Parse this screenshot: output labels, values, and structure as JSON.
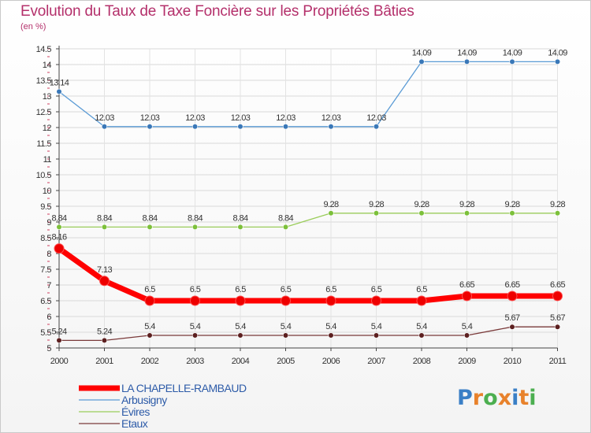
{
  "title": "Evolution du Taux de Taxe Foncière sur les Propriétés Bâties",
  "unit_label": "(en %)",
  "logo": {
    "text": "Proxiti",
    "letters": [
      "P",
      "r",
      "o",
      "x",
      "i",
      "t",
      "i"
    ],
    "colors": [
      "#3a7fc6",
      "#e8822c",
      "#4caf50",
      "#e8822c",
      "#3a7fc6",
      "#e8822c",
      "#4caf50"
    ]
  },
  "chart_data": {
    "type": "line",
    "title": "Evolution du Taux de Taxe Foncière sur les Propriétés Bâties",
    "ylabel": "(en %)",
    "xlabel": "",
    "categories": [
      "2000",
      "2001",
      "2002",
      "2003",
      "2004",
      "2005",
      "2006",
      "2007",
      "2008",
      "2009",
      "2010",
      "2011"
    ],
    "ylim": [
      5,
      14.5
    ],
    "yticks": [
      "5",
      "5.5",
      "6",
      "6.5",
      "7",
      "7.5",
      "8",
      "8.5",
      "9",
      "9.5",
      "10",
      "10.5",
      "11",
      "11.5",
      "12",
      "12.5",
      "13",
      "13.5",
      "14",
      "14.5"
    ],
    "series": [
      {
        "name": "Arbusigny",
        "color": "#5b9bd5",
        "marker": "#3a78b8",
        "values": [
          13.14,
          12.03,
          12.03,
          12.03,
          12.03,
          12.03,
          12.03,
          12.03,
          14.09,
          14.09,
          14.09,
          14.09
        ],
        "labels": [
          "13.14",
          "12.03",
          "12.03",
          "12.03",
          "12.03",
          "12.03",
          "12.03",
          "12.03",
          "14.09",
          "14.09",
          "14.09",
          "14.09"
        ]
      },
      {
        "name": "Évires",
        "color": "#9acd5a",
        "marker": "#7cc03a",
        "values": [
          8.84,
          8.84,
          8.84,
          8.84,
          8.84,
          8.84,
          9.28,
          9.28,
          9.28,
          9.28,
          9.28,
          9.28
        ],
        "labels": [
          "8.84",
          "8.84",
          "8.84",
          "8.84",
          "8.84",
          "8.84",
          "9.28",
          "9.28",
          "9.28",
          "9.28",
          "9.28",
          "9.28"
        ]
      },
      {
        "name": "LA CHAPELLE-RAMBAUD",
        "color": "#ff0000",
        "marker": "#ee0000",
        "values": [
          8.16,
          7.13,
          6.5,
          6.5,
          6.5,
          6.5,
          6.5,
          6.5,
          6.5,
          6.65,
          6.65,
          6.65
        ],
        "labels": [
          "8.16",
          "7.13",
          "6.5",
          "6.5",
          "6.5",
          "6.5",
          "6.5",
          "6.5",
          "6.5",
          "6.65",
          "6.65",
          "6.65"
        ]
      },
      {
        "name": "Etaux",
        "color": "#7a3a3a",
        "marker": "#5c1f1f",
        "values": [
          5.24,
          5.24,
          5.4,
          5.4,
          5.4,
          5.4,
          5.4,
          5.4,
          5.4,
          5.4,
          5.67,
          5.67
        ],
        "labels": [
          "5.24",
          "5.24",
          "5.4",
          "5.4",
          "5.4",
          "5.4",
          "5.4",
          "5.4",
          "5.4",
          "5.4",
          "5.67",
          "5.67"
        ]
      }
    ],
    "legend": [
      "LA CHAPELLE-RAMBAUD",
      "Arbusigny",
      "Évires",
      "Etaux"
    ]
  }
}
